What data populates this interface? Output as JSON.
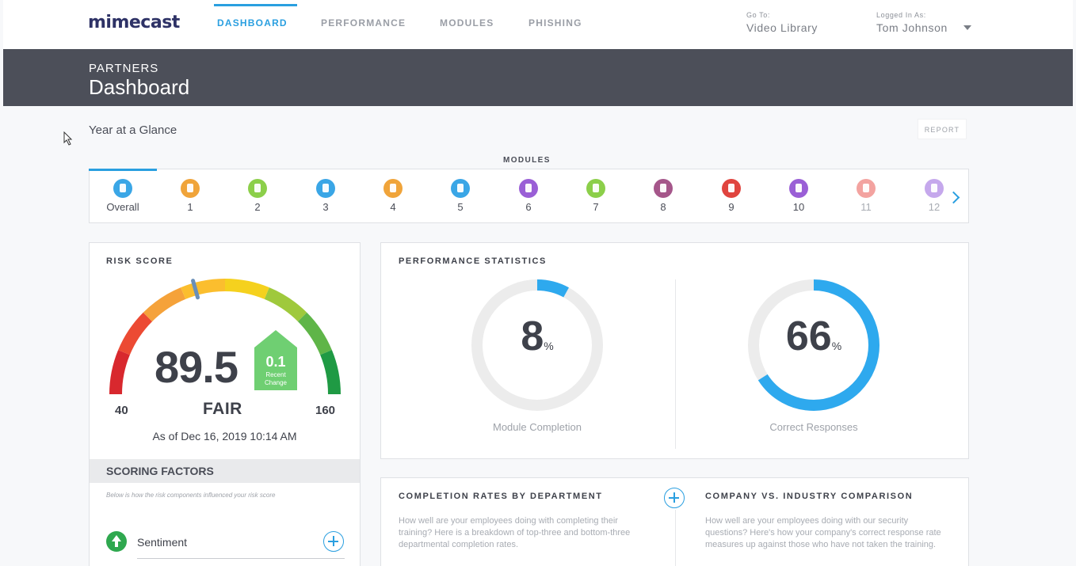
{
  "nav": {
    "logo": "mimecast",
    "tabs": [
      {
        "label": "DASHBOARD",
        "active": true
      },
      {
        "label": "PERFORMANCE",
        "active": false
      },
      {
        "label": "MODULES",
        "active": false
      },
      {
        "label": "PHISHING",
        "active": false
      }
    ],
    "goto_label": "Go To:",
    "goto_value": "Video Library",
    "logged_label": "Logged In As:",
    "logged_value": "Tom Johnson"
  },
  "header": {
    "subtitle": "PARTNERS",
    "title": "Dashboard"
  },
  "glance": {
    "title": "Year at a Glance",
    "report_button": "REPORT"
  },
  "modules": {
    "title": "MODULES",
    "items": [
      {
        "label": "Overall",
        "color": "#3aa6e6",
        "icon": "bar-chart-icon",
        "dim": false
      },
      {
        "label": "1",
        "color": "#f0a43a",
        "icon": "usb-icon",
        "dim": false
      },
      {
        "label": "2",
        "color": "#8ccf4a",
        "icon": "document-icon",
        "dim": false
      },
      {
        "label": "3",
        "color": "#3aa6e6",
        "icon": "cloud-icon",
        "dim": false
      },
      {
        "label": "4",
        "color": "#f0a43a",
        "icon": "usb-icon",
        "dim": false
      },
      {
        "label": "5",
        "color": "#3aa6e6",
        "icon": "cloud-icon",
        "dim": false
      },
      {
        "label": "6",
        "color": "#9a5fd6",
        "icon": "key-icon",
        "dim": false
      },
      {
        "label": "7",
        "color": "#8ccf4a",
        "icon": "document-icon",
        "dim": false
      },
      {
        "label": "8",
        "color": "#a5568a",
        "icon": "caduceus-icon",
        "dim": false
      },
      {
        "label": "9",
        "color": "#e0443e",
        "icon": "card-icon",
        "dim": false
      },
      {
        "label": "10",
        "color": "#9a5fd6",
        "icon": "key-icon",
        "dim": false
      },
      {
        "label": "11",
        "color": "#f3a3a0",
        "icon": "card-icon",
        "dim": true
      },
      {
        "label": "12",
        "color": "#c5a8ec",
        "icon": "lock-icon",
        "dim": true
      }
    ]
  },
  "risk": {
    "title": "RISK SCORE",
    "score": "89.5",
    "change": "0.1",
    "change_label_1": "Recent",
    "change_label_2": "Change",
    "min": "40",
    "max": "160",
    "rating": "FAIR",
    "as_of": "As of Dec 16, 2019 10:14 AM",
    "gauge_fraction": 0.4125,
    "scoring_title": "SCORING FACTORS",
    "scoring_note": "Below is how the risk components influenced your risk score",
    "factors": [
      {
        "label": "Sentiment",
        "icon": "arrow-up-icon",
        "color": "#2fa84f"
      }
    ]
  },
  "performance": {
    "title": "PERFORMANCE STATISTICS",
    "module_completion": {
      "value": "8",
      "unit": "%",
      "label": "Module Completion",
      "fraction": 0.08
    },
    "correct_responses": {
      "value": "66",
      "unit": "%",
      "label": "Correct Responses",
      "fraction": 0.66
    }
  },
  "completion": {
    "left_title": "COMPLETION RATES BY DEPARTMENT",
    "left_text": "How well are your employees doing with completing their training? Here is a breakdown of top-three and bottom-three departmental completion rates.",
    "right_title": "COMPANY VS. INDUSTRY COMPARISON",
    "right_text": "How well are your employees doing with our security questions? Here's how your company's correct response rate measures up against those who have not taken the training."
  },
  "colors": {
    "accent": "#2a9fe0",
    "header_band": "#4c4f59",
    "donut_track": "#ececec",
    "donut_fill": "#2ea9ee"
  }
}
